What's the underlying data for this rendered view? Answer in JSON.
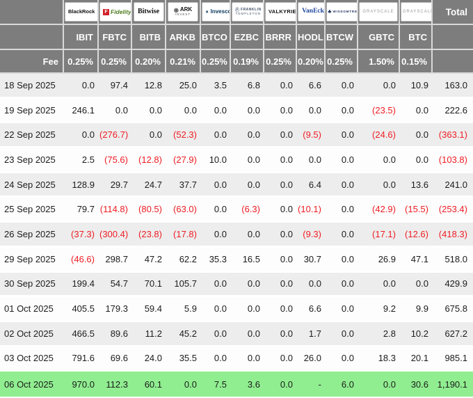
{
  "colors": {
    "header-bg": "#7d7d7d",
    "row-alt": "#ededed",
    "row-green": "#90ee90",
    "negative-red": "#ee1c23",
    "fidelity-red": "#d0212a",
    "fidelity-green": "#4e7d1e",
    "invesco-blue": "#0b3a5d",
    "vaneck-blue": "#1c449b",
    "wisdomtree-navy": "#1d2e5e",
    "grayscale-gray": "#97999b"
  },
  "header": {
    "total_label": "Total",
    "fee_label": "Fee",
    "providers": [
      {
        "id": "blackrock",
        "label": "BlackRock"
      },
      {
        "id": "fidelity",
        "prefix": "F",
        "label": "Fidelity"
      },
      {
        "id": "bitwise",
        "label": "Bitwise"
      },
      {
        "id": "ark",
        "prefix": "◉",
        "label": "ARK",
        "sub": "INVEST"
      },
      {
        "id": "invesco",
        "prefix": "▲",
        "label": "Invesco"
      },
      {
        "id": "franklin",
        "prefix": "Ⓕ",
        "label": "FRANKLIN",
        "sub": "TEMPLETON"
      },
      {
        "id": "valkyrie",
        "label": "VALKYRIE"
      },
      {
        "id": "vaneck",
        "label": "VanEck"
      },
      {
        "id": "wisdomtree",
        "prefix": "♣",
        "label": "WISDOMTREE"
      },
      {
        "id": "grayscale",
        "label": "GRAYSCALE"
      },
      {
        "id": "grayscale2",
        "label": "GRAYSCALE"
      }
    ],
    "tickers": [
      "IBIT",
      "FBTC",
      "BITB",
      "ARKB",
      "BTCO",
      "EZBC",
      "BRRR",
      "HODL",
      "BTCW",
      "GBTC",
      "BTC"
    ],
    "fees": [
      "0.25%",
      "0.25%",
      "0.20%",
      "0.21%",
      "0.25%",
      "0.19%",
      "0.25%",
      "0.20%",
      "0.25%",
      "1.50%",
      "0.15%"
    ]
  },
  "rows": [
    {
      "date": "18 Sep 2025",
      "values": [
        "0.0",
        "97.4",
        "12.8",
        "25.0",
        "3.5",
        "6.8",
        "0.0",
        "6.6",
        "0.0",
        "0.0",
        "10.9"
      ],
      "total": "163.0",
      "highlight": false
    },
    {
      "date": "19 Sep 2025",
      "values": [
        "246.1",
        "0.0",
        "0.0",
        "0.0",
        "0.0",
        "0.0",
        "0.0",
        "0.0",
        "0.0",
        "(23.5)",
        "0.0"
      ],
      "total": "222.6",
      "highlight": false
    },
    {
      "date": "22 Sep 2025",
      "values": [
        "0.0",
        "(276.7)",
        "0.0",
        "(52.3)",
        "0.0",
        "0.0",
        "0.0",
        "(9.5)",
        "0.0",
        "(24.6)",
        "0.0"
      ],
      "total": "(363.1)",
      "highlight": false
    },
    {
      "date": "23 Sep 2025",
      "values": [
        "2.5",
        "(75.6)",
        "(12.8)",
        "(27.9)",
        "10.0",
        "0.0",
        "0.0",
        "0.0",
        "0.0",
        "0.0",
        "0.0"
      ],
      "total": "(103.8)",
      "highlight": false
    },
    {
      "date": "24 Sep 2025",
      "values": [
        "128.9",
        "29.7",
        "24.7",
        "37.7",
        "0.0",
        "0.0",
        "0.0",
        "6.4",
        "0.0",
        "0.0",
        "13.6"
      ],
      "total": "241.0",
      "highlight": false
    },
    {
      "date": "25 Sep 2025",
      "values": [
        "79.7",
        "(114.8)",
        "(80.5)",
        "(63.0)",
        "0.0",
        "(6.3)",
        "0.0",
        "(10.1)",
        "0.0",
        "(42.9)",
        "(15.5)"
      ],
      "total": "(253.4)",
      "highlight": false
    },
    {
      "date": "26 Sep 2025",
      "values": [
        "(37.3)",
        "(300.4)",
        "(23.8)",
        "(17.8)",
        "0.0",
        "0.0",
        "0.0",
        "(9.3)",
        "0.0",
        "(17.1)",
        "(12.6)"
      ],
      "total": "(418.3)",
      "highlight": false
    },
    {
      "date": "29 Sep 2025",
      "values": [
        "(46.6)",
        "298.7",
        "47.2",
        "62.2",
        "35.3",
        "16.5",
        "0.0",
        "30.7",
        "0.0",
        "26.9",
        "47.1"
      ],
      "total": "518.0",
      "highlight": false
    },
    {
      "date": "30 Sep 2025",
      "values": [
        "199.4",
        "54.7",
        "70.1",
        "105.7",
        "0.0",
        "0.0",
        "0.0",
        "0.0",
        "0.0",
        "0.0",
        "0.0"
      ],
      "total": "429.9",
      "highlight": false
    },
    {
      "date": "01 Oct 2025",
      "values": [
        "405.5",
        "179.3",
        "59.4",
        "5.9",
        "0.0",
        "0.0",
        "0.0",
        "6.6",
        "0.0",
        "9.2",
        "9.9"
      ],
      "total": "675.8",
      "highlight": false
    },
    {
      "date": "02 Oct 2025",
      "values": [
        "466.5",
        "89.6",
        "11.2",
        "45.2",
        "0.0",
        "0.0",
        "0.0",
        "1.7",
        "0.0",
        "2.8",
        "10.2"
      ],
      "total": "627.2",
      "highlight": false
    },
    {
      "date": "03 Oct 2025",
      "values": [
        "791.6",
        "69.6",
        "24.0",
        "35.5",
        "0.0",
        "0.0",
        "0.0",
        "26.0",
        "0.0",
        "18.3",
        "20.1"
      ],
      "total": "985.1",
      "highlight": false
    },
    {
      "date": "06 Oct 2025",
      "values": [
        "970.0",
        "112.3",
        "60.1",
        "0.0",
        "7.5",
        "3.6",
        "0.0",
        "-",
        "6.0",
        "0.0",
        "30.6"
      ],
      "total": "1,190.1",
      "highlight": true
    }
  ]
}
